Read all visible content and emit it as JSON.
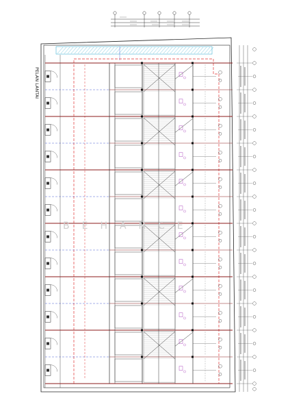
{
  "drawing": {
    "title": "PELAN LANTAI",
    "watermark": "BEHANCE",
    "unit_count": 12,
    "colors": {
      "line": "#333333",
      "grid_red": "#8b1a1a",
      "dash_red": "#e03030",
      "blue": "#3b4fd0",
      "cyan": "#1fa5c9",
      "purple": "#b050c0",
      "watermark": "#cfcfcf"
    }
  }
}
